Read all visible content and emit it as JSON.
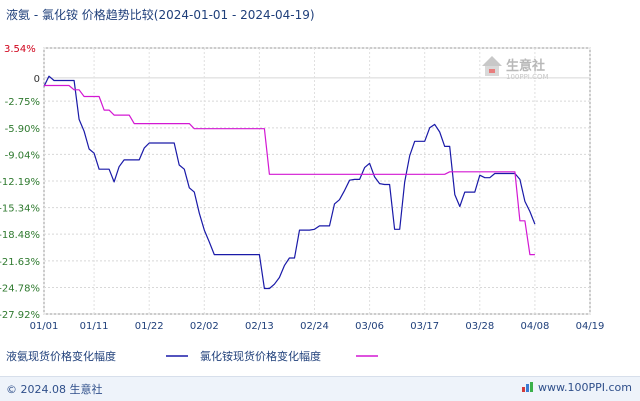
{
  "chart_data": {
    "type": "line",
    "title": "液氨 - 氯化铵 价格趋势比较(2024-01-01 - 2024-04-19)",
    "y_unit": "%",
    "ylim": [
      -27.92,
      3.54
    ],
    "y_ticks": [
      "3.54%",
      "0",
      "-2.75%",
      "-5.90%",
      "-9.04%",
      "-12.19%",
      "-15.34%",
      "-18.48%",
      "-21.63%",
      "-24.78%",
      "-27.92%"
    ],
    "y_tick_values": [
      3.54,
      0,
      -2.75,
      -5.9,
      -9.04,
      -12.19,
      -15.34,
      -18.48,
      -21.63,
      -24.78,
      -27.92
    ],
    "x_ticks": [
      "01/01",
      "01/11",
      "01/22",
      "02/02",
      "02/13",
      "02/24",
      "03/06",
      "03/17",
      "03/28",
      "04/08",
      "04/19"
    ],
    "x_tick_days": [
      0,
      10,
      21,
      32,
      43,
      54,
      65,
      76,
      87,
      98,
      109
    ],
    "x_range": [
      0,
      109
    ],
    "grid": true,
    "legend_position": "bottom-left",
    "series": [
      {
        "name": "液氨现货价格变化幅度",
        "color": "#1a1aa8",
        "points": [
          [
            0,
            -1.0
          ],
          [
            1,
            0.2
          ],
          [
            2,
            -0.3
          ],
          [
            3,
            -0.3
          ],
          [
            4,
            -0.3
          ],
          [
            5,
            -0.3
          ],
          [
            6,
            -0.3
          ],
          [
            7,
            -4.9
          ],
          [
            8,
            -6.3
          ],
          [
            9,
            -8.4
          ],
          [
            10,
            -8.9
          ],
          [
            11,
            -10.8
          ],
          [
            12,
            -10.8
          ],
          [
            13,
            -10.8
          ],
          [
            14,
            -12.3
          ],
          [
            15,
            -10.5
          ],
          [
            16,
            -9.7
          ],
          [
            17,
            -9.7
          ],
          [
            18,
            -9.7
          ],
          [
            19,
            -9.7
          ],
          [
            20,
            -8.3
          ],
          [
            21,
            -7.7
          ],
          [
            22,
            -7.7
          ],
          [
            23,
            -7.7
          ],
          [
            24,
            -7.7
          ],
          [
            25,
            -7.7
          ],
          [
            26,
            -7.7
          ],
          [
            27,
            -10.3
          ],
          [
            28,
            -10.8
          ],
          [
            29,
            -13.0
          ],
          [
            30,
            -13.5
          ],
          [
            31,
            -16.0
          ],
          [
            32,
            -18.0
          ],
          [
            33,
            -19.4
          ],
          [
            34,
            -20.9
          ],
          [
            35,
            -20.9
          ],
          [
            36,
            -20.9
          ],
          [
            37,
            -20.9
          ],
          [
            38,
            -20.9
          ],
          [
            39,
            -20.9
          ],
          [
            40,
            -20.9
          ],
          [
            41,
            -20.9
          ],
          [
            42,
            -20.9
          ],
          [
            43,
            -20.9
          ],
          [
            44,
            -24.9
          ],
          [
            45,
            -24.9
          ],
          [
            46,
            -24.4
          ],
          [
            47,
            -23.6
          ],
          [
            48,
            -22.2
          ],
          [
            49,
            -21.3
          ],
          [
            50,
            -21.3
          ],
          [
            51,
            -18.0
          ],
          [
            52,
            -18.0
          ],
          [
            53,
            -18.0
          ],
          [
            54,
            -17.9
          ],
          [
            55,
            -17.5
          ],
          [
            56,
            -17.5
          ],
          [
            57,
            -17.5
          ],
          [
            58,
            -14.9
          ],
          [
            59,
            -14.4
          ],
          [
            60,
            -13.3
          ],
          [
            61,
            -12.1
          ],
          [
            62,
            -12.0
          ],
          [
            63,
            -12.0
          ],
          [
            64,
            -10.6
          ],
          [
            65,
            -10.1
          ],
          [
            66,
            -11.7
          ],
          [
            67,
            -12.5
          ],
          [
            68,
            -12.6
          ],
          [
            69,
            -12.6
          ],
          [
            70,
            -17.9
          ],
          [
            71,
            -17.9
          ],
          [
            72,
            -12.3
          ],
          [
            73,
            -9.2
          ],
          [
            74,
            -7.5
          ],
          [
            75,
            -7.5
          ],
          [
            76,
            -7.5
          ],
          [
            77,
            -5.9
          ],
          [
            78,
            -5.5
          ],
          [
            79,
            -6.4
          ],
          [
            80,
            -8.1
          ],
          [
            81,
            -8.1
          ],
          [
            82,
            -13.8
          ],
          [
            83,
            -15.2
          ],
          [
            84,
            -13.5
          ],
          [
            85,
            -13.5
          ],
          [
            86,
            -13.5
          ],
          [
            87,
            -11.5
          ],
          [
            88,
            -11.8
          ],
          [
            89,
            -11.8
          ],
          [
            90,
            -11.3
          ],
          [
            91,
            -11.3
          ],
          [
            92,
            -11.3
          ],
          [
            93,
            -11.3
          ],
          [
            94,
            -11.3
          ],
          [
            95,
            -12.0
          ],
          [
            96,
            -14.6
          ],
          [
            97,
            -15.8
          ],
          [
            98,
            -17.3
          ]
        ]
      },
      {
        "name": "氯化铵现货价格变化幅度",
        "color": "#d318d3",
        "points": [
          [
            0,
            -0.9
          ],
          [
            5,
            -0.9
          ],
          [
            6,
            -1.4
          ],
          [
            7,
            -1.4
          ],
          [
            8,
            -2.2
          ],
          [
            11,
            -2.2
          ],
          [
            12,
            -3.8
          ],
          [
            13,
            -3.8
          ],
          [
            14,
            -4.4
          ],
          [
            17,
            -4.4
          ],
          [
            18,
            -5.4
          ],
          [
            29,
            -5.4
          ],
          [
            30,
            -6.0
          ],
          [
            44,
            -6.0
          ],
          [
            45,
            -11.4
          ],
          [
            80,
            -11.4
          ],
          [
            81,
            -11.1
          ],
          [
            94,
            -11.1
          ],
          [
            95,
            -16.9
          ],
          [
            96,
            -16.9
          ],
          [
            97,
            -20.9
          ],
          [
            98,
            -20.9
          ]
        ]
      }
    ]
  },
  "watermark": {
    "logo_text": "生意社",
    "url_text": "100PPI.COM"
  },
  "footer": {
    "left_text": "© 2024.08 生意社",
    "right_text": "www.100PPI.com"
  }
}
